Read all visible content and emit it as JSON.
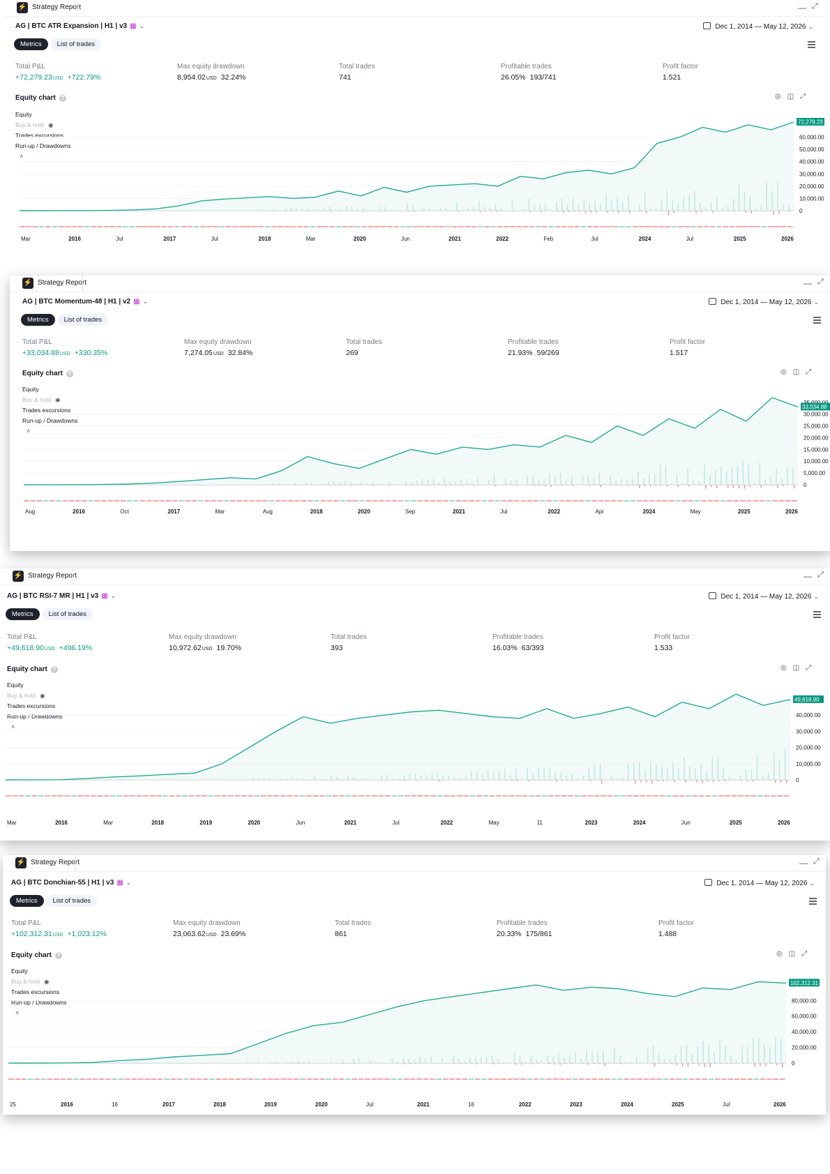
{
  "panels": [
    {
      "app_title": "Strategy Report",
      "strategy": "AG | BTC ATR Expansion | H1 | v3",
      "date_range": "Dec 1, 2014 — May 12, 2026",
      "tabs": {
        "metrics": "Metrics",
        "trades": "List of trades"
      },
      "metrics": {
        "total_pnl": {
          "label": "Total P&L",
          "value": "+72,279.23",
          "unit": "USD",
          "pct": "+722.79%"
        },
        "max_dd": {
          "label": "Max equity drawdown",
          "value": "8,954.02",
          "unit": "USD",
          "pct": "32.24%"
        },
        "total_trades": {
          "label": "Total trades",
          "value": "741"
        },
        "profitable": {
          "label": "Profitable trades",
          "value": "26.05%",
          "ratio": "193/741"
        },
        "profit_factor": {
          "label": "Profit factor",
          "value": "1.521"
        }
      },
      "equity_chart": {
        "title": "Equity chart",
        "legend": [
          "Equity",
          "Buy & hold",
          "Trades excursions",
          "Run-up / Drawdowns"
        ],
        "y_ticks": [
          "60,000.00",
          "50,000.00",
          "40,000.00",
          "30,000.00",
          "20,000.00",
          "10,000.00",
          "0"
        ],
        "last_value": "72,279.23",
        "x_ticks": [
          "Mar",
          "2016",
          "Jul",
          "2017",
          "Jul",
          "2018",
          "Mar",
          "2020",
          "Jun",
          "2021",
          "2022",
          "Feb",
          "Jul",
          "2024",
          "Jul",
          "2025",
          "2026"
        ],
        "chart_data": {
          "type": "line",
          "series": [
            {
              "name": "Equity",
              "y": [
                0,
                10,
                30,
                80,
                200,
                600,
                1500,
                4000,
                8000,
                9500,
                10500,
                11500,
                10000,
                11000,
                16000,
                12000,
                19000,
                15000,
                20000,
                21000,
                22000,
                20000,
                28000,
                26000,
                31000,
                33000,
                30000,
                35000,
                55000,
                60000,
                68000,
                64000,
                70000,
                66000,
                72279
              ]
            }
          ],
          "ylim": [
            0,
            72279
          ]
        }
      }
    },
    {
      "app_title": "Strategy Report",
      "strategy": "AG | BTC Momentum-48 | H1 | v2",
      "date_range": "Dec 1, 2014 — May 12, 2026",
      "tabs": {
        "metrics": "Metrics",
        "trades": "List of trades"
      },
      "metrics": {
        "total_pnl": {
          "label": "Total P&L",
          "value": "+33,034.88",
          "unit": "USD",
          "pct": "+330.35%"
        },
        "max_dd": {
          "label": "Max equity drawdown",
          "value": "7,274.05",
          "unit": "USD",
          "pct": "32.84%"
        },
        "total_trades": {
          "label": "Total trades",
          "value": "269"
        },
        "profitable": {
          "label": "Profitable trades",
          "value": "21.93%",
          "ratio": "59/269"
        },
        "profit_factor": {
          "label": "Profit factor",
          "value": "1.517"
        }
      },
      "equity_chart": {
        "title": "Equity chart",
        "legend": [
          "Equity",
          "Buy & hold",
          "Trades excursions",
          "Run-up / Drawdowns"
        ],
        "y_ticks": [
          "35,000.00",
          "30,000.00",
          "25,000.00",
          "20,000.00",
          "15,000.00",
          "10,000.00",
          "5,000.00",
          "0"
        ],
        "last_value": "33,034.88",
        "x_ticks": [
          "Aug",
          "2016",
          "Oct",
          "2017",
          "Mar",
          "Aug",
          "2018",
          "2020",
          "Sep",
          "2021",
          "Jul",
          "2022",
          "Apr",
          "2024",
          "May",
          "2025",
          "2026"
        ],
        "chart_data": {
          "type": "line",
          "series": [
            {
              "name": "Equity",
              "y": [
                0,
                20,
                50,
                120,
                300,
                700,
                1400,
                2200,
                3000,
                2500,
                6000,
                12000,
                9000,
                7000,
                11000,
                15000,
                13000,
                16000,
                15000,
                17000,
                16000,
                21000,
                18000,
                25000,
                21000,
                28000,
                24000,
                32000,
                27000,
                37000,
                33035
              ]
            }
          ],
          "ylim": [
            0,
            37000
          ]
        }
      }
    },
    {
      "app_title": "Strategy Report",
      "strategy": "AG | BTC RSI-7 MR | H1 | v3",
      "date_range": "Dec 1, 2014 — May 12, 2026",
      "tabs": {
        "metrics": "Metrics",
        "trades": "List of trades"
      },
      "metrics": {
        "total_pnl": {
          "label": "Total P&L",
          "value": "+49,618.90",
          "unit": "USD",
          "pct": "+496.19%"
        },
        "max_dd": {
          "label": "Max equity drawdown",
          "value": "10,972.62",
          "unit": "USD",
          "pct": "19.70%"
        },
        "total_trades": {
          "label": "Total trades",
          "value": "393"
        },
        "profitable": {
          "label": "Profitable trades",
          "value": "16.03%",
          "ratio": "63/393"
        },
        "profit_factor": {
          "label": "Profit factor",
          "value": "1.533"
        }
      },
      "equity_chart": {
        "title": "Equity chart",
        "legend": [
          "Equity",
          "Buy & hold",
          "Trades excursions",
          "Run-up / Drawdowns"
        ],
        "y_ticks": [
          "40,000.00",
          "30,000.00",
          "20,000.00",
          "10,000.00",
          "0"
        ],
        "last_value": "49,618.90",
        "x_ticks": [
          "Mar",
          "2016",
          "Mar",
          "2018",
          "2019",
          "2020",
          "Jun",
          "2021",
          "Jul",
          "2022",
          "May",
          "11",
          "2023",
          "2024",
          "Jun",
          "2025",
          "2026"
        ],
        "chart_data": {
          "type": "line",
          "series": [
            {
              "name": "Equity",
              "y": [
                0,
                30,
                100,
                800,
                1800,
                2500,
                3400,
                4200,
                10000,
                20000,
                30000,
                39000,
                35000,
                38000,
                40000,
                42000,
                43000,
                41000,
                39000,
                38000,
                44000,
                38000,
                41000,
                45000,
                39000,
                48000,
                44000,
                53000,
                46000,
                49619
              ]
            }
          ],
          "ylim": [
            0,
            53000
          ]
        }
      }
    },
    {
      "app_title": "Strategy Report",
      "strategy": "AG | BTC Donchian-55 | H1 | v3",
      "date_range": "Dec 1, 2014 — May 12, 2026",
      "tabs": {
        "metrics": "Metrics",
        "trades": "List of trades"
      },
      "metrics": {
        "total_pnl": {
          "label": "Total P&L",
          "value": "+102,312.31",
          "unit": "USD",
          "pct": "+1,023.12%"
        },
        "max_dd": {
          "label": "Max equity drawdown",
          "value": "23,063.62",
          "unit": "USD",
          "pct": "23.69%"
        },
        "total_trades": {
          "label": "Total trades",
          "value": "861"
        },
        "profitable": {
          "label": "Profitable trades",
          "value": "20.33%",
          "ratio": "175/861"
        },
        "profit_factor": {
          "label": "Profit factor",
          "value": "1.488"
        }
      },
      "equity_chart": {
        "title": "Equity chart",
        "legend": [
          "Equity",
          "Buy & hold",
          "Trades excursions",
          "Run-up / Drawdowns"
        ],
        "y_ticks": [
          "80,000.00",
          "60,000.00",
          "40,000.00",
          "20,000.00",
          "0"
        ],
        "last_value": "102,312.31",
        "x_ticks": [
          "25",
          "2016",
          "16",
          "2017",
          "2018",
          "2019",
          "2020",
          "Jul",
          "2021",
          "16",
          "2022",
          "2023",
          "2024",
          "2025",
          "Jul",
          "2026"
        ],
        "chart_data": {
          "type": "line",
          "series": [
            {
              "name": "Equity",
              "y": [
                0,
                40,
                200,
                700,
                3000,
                5000,
                8000,
                10000,
                12000,
                25000,
                38000,
                48000,
                52000,
                62000,
                72000,
                80000,
                85000,
                90000,
                95000,
                100000,
                93000,
                97000,
                95000,
                89000,
                85000,
                96000,
                94000,
                104000,
                102312
              ]
            }
          ],
          "ylim": [
            0,
            107000
          ]
        }
      }
    }
  ],
  "colors": {
    "equity": "#22ab94",
    "loss": "#f5a5a5",
    "win": "#26a69a",
    "accent_label": "#089981",
    "calendar_icon": "#c82fd8"
  }
}
